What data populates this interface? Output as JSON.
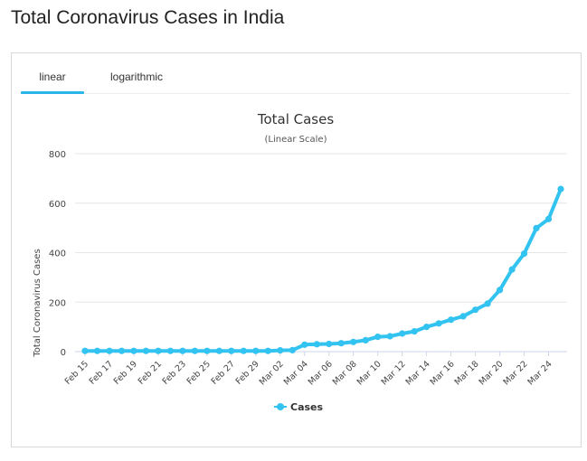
{
  "page": {
    "title": "Total Coronavirus Cases in India"
  },
  "tabs": [
    {
      "label": "linear",
      "active": true
    },
    {
      "label": "logarithmic",
      "active": false
    }
  ],
  "colors": {
    "series": "#33c3f0",
    "tab_underline": "#2bb5e8",
    "grid": "#e6e6e6"
  },
  "chart_data": {
    "type": "line",
    "title": "Total Cases",
    "subtitle": "(Linear Scale)",
    "xlabel": "",
    "ylabel": "Total Coronavirus Cases",
    "ylim": [
      0,
      800
    ],
    "yticks": [
      0,
      200,
      400,
      600,
      800
    ],
    "grid": true,
    "legend_position": "bottom-center",
    "x": [
      "Feb 15",
      "Feb 16",
      "Feb 17",
      "Feb 18",
      "Feb 19",
      "Feb 20",
      "Feb 21",
      "Feb 22",
      "Feb 23",
      "Feb 24",
      "Feb 25",
      "Feb 26",
      "Feb 27",
      "Feb 28",
      "Feb 29",
      "Mar 01",
      "Mar 02",
      "Mar 03",
      "Mar 04",
      "Mar 05",
      "Mar 06",
      "Mar 07",
      "Mar 08",
      "Mar 09",
      "Mar 10",
      "Mar 11",
      "Mar 12",
      "Mar 13",
      "Mar 14",
      "Mar 15",
      "Mar 16",
      "Mar 17",
      "Mar 18",
      "Mar 19",
      "Mar 20",
      "Mar 21",
      "Mar 22",
      "Mar 23",
      "Mar 24",
      "Mar 25"
    ],
    "xtick_labels": [
      "Feb 15",
      "Feb 17",
      "Feb 19",
      "Feb 21",
      "Feb 23",
      "Feb 25",
      "Feb 27",
      "Feb 29",
      "Mar 02",
      "Mar 04",
      "Mar 06",
      "Mar 08",
      "Mar 10",
      "Mar 12",
      "Mar 14",
      "Mar 16",
      "Mar 18",
      "Mar 20",
      "Mar 22",
      "Mar 24"
    ],
    "series": [
      {
        "name": "Cases",
        "values": [
          3,
          3,
          3,
          3,
          3,
          3,
          3,
          3,
          3,
          3,
          3,
          3,
          3,
          3,
          3,
          3,
          5,
          6,
          28,
          30,
          31,
          34,
          39,
          46,
          60,
          62,
          73,
          82,
          100,
          114,
          129,
          143,
          169,
          194,
          249,
          332,
          396,
          499,
          536,
          657
        ]
      }
    ]
  }
}
